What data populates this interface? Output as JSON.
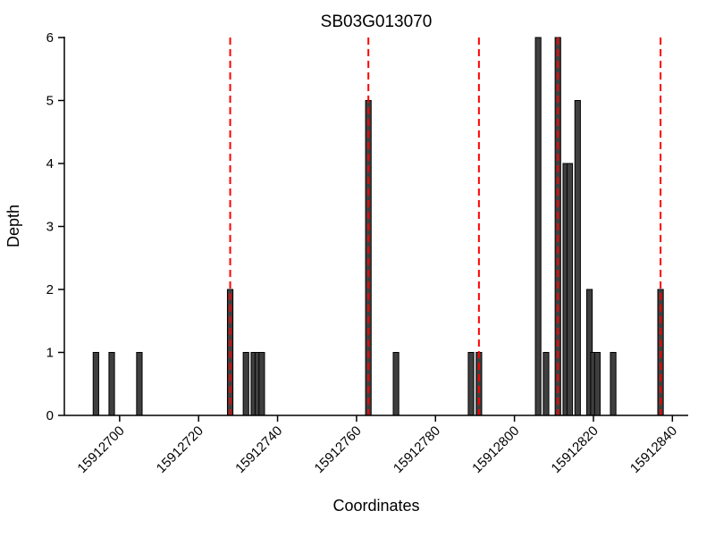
{
  "chart_data": {
    "type": "bar",
    "title": "SB03G013070",
    "xlabel": "Coordinates",
    "ylabel": "Depth",
    "xlim": [
      15912686,
      15912844
    ],
    "ylim": [
      0,
      6
    ],
    "x_ticks": [
      15912700,
      15912720,
      15912740,
      15912760,
      15912780,
      15912800,
      15912820,
      15912840
    ],
    "y_ticks": [
      0,
      1,
      2,
      3,
      4,
      5,
      6
    ],
    "grid": false,
    "legend_position": "none",
    "bar_width": 1.4,
    "bars": [
      {
        "coordinate": 15912694,
        "depth": 1
      },
      {
        "coordinate": 15912698,
        "depth": 1
      },
      {
        "coordinate": 15912705,
        "depth": 1
      },
      {
        "coordinate": 15912728,
        "depth": 2
      },
      {
        "coordinate": 15912732,
        "depth": 1
      },
      {
        "coordinate": 15912734,
        "depth": 1
      },
      {
        "coordinate": 15912735,
        "depth": 1
      },
      {
        "coordinate": 15912736,
        "depth": 1
      },
      {
        "coordinate": 15912763,
        "depth": 5
      },
      {
        "coordinate": 15912770,
        "depth": 1
      },
      {
        "coordinate": 15912789,
        "depth": 1
      },
      {
        "coordinate": 15912791,
        "depth": 1
      },
      {
        "coordinate": 15912806,
        "depth": 6
      },
      {
        "coordinate": 15912808,
        "depth": 1
      },
      {
        "coordinate": 15912811,
        "depth": 6
      },
      {
        "coordinate": 15912813,
        "depth": 4
      },
      {
        "coordinate": 15912814,
        "depth": 4
      },
      {
        "coordinate": 15912816,
        "depth": 5
      },
      {
        "coordinate": 15912819,
        "depth": 2
      },
      {
        "coordinate": 15912820,
        "depth": 1
      },
      {
        "coordinate": 15912821,
        "depth": 1
      },
      {
        "coordinate": 15912825,
        "depth": 1
      },
      {
        "coordinate": 15912837,
        "depth": 2
      }
    ],
    "marker_lines": [
      15912728,
      15912763,
      15912791,
      15912811,
      15912837
    ],
    "colors": {
      "bar_fill": "#3f3f3f",
      "bar_edge": "#000000",
      "marker_line": "#ff0000",
      "axis": "#000000",
      "background": "#ffffff"
    }
  }
}
